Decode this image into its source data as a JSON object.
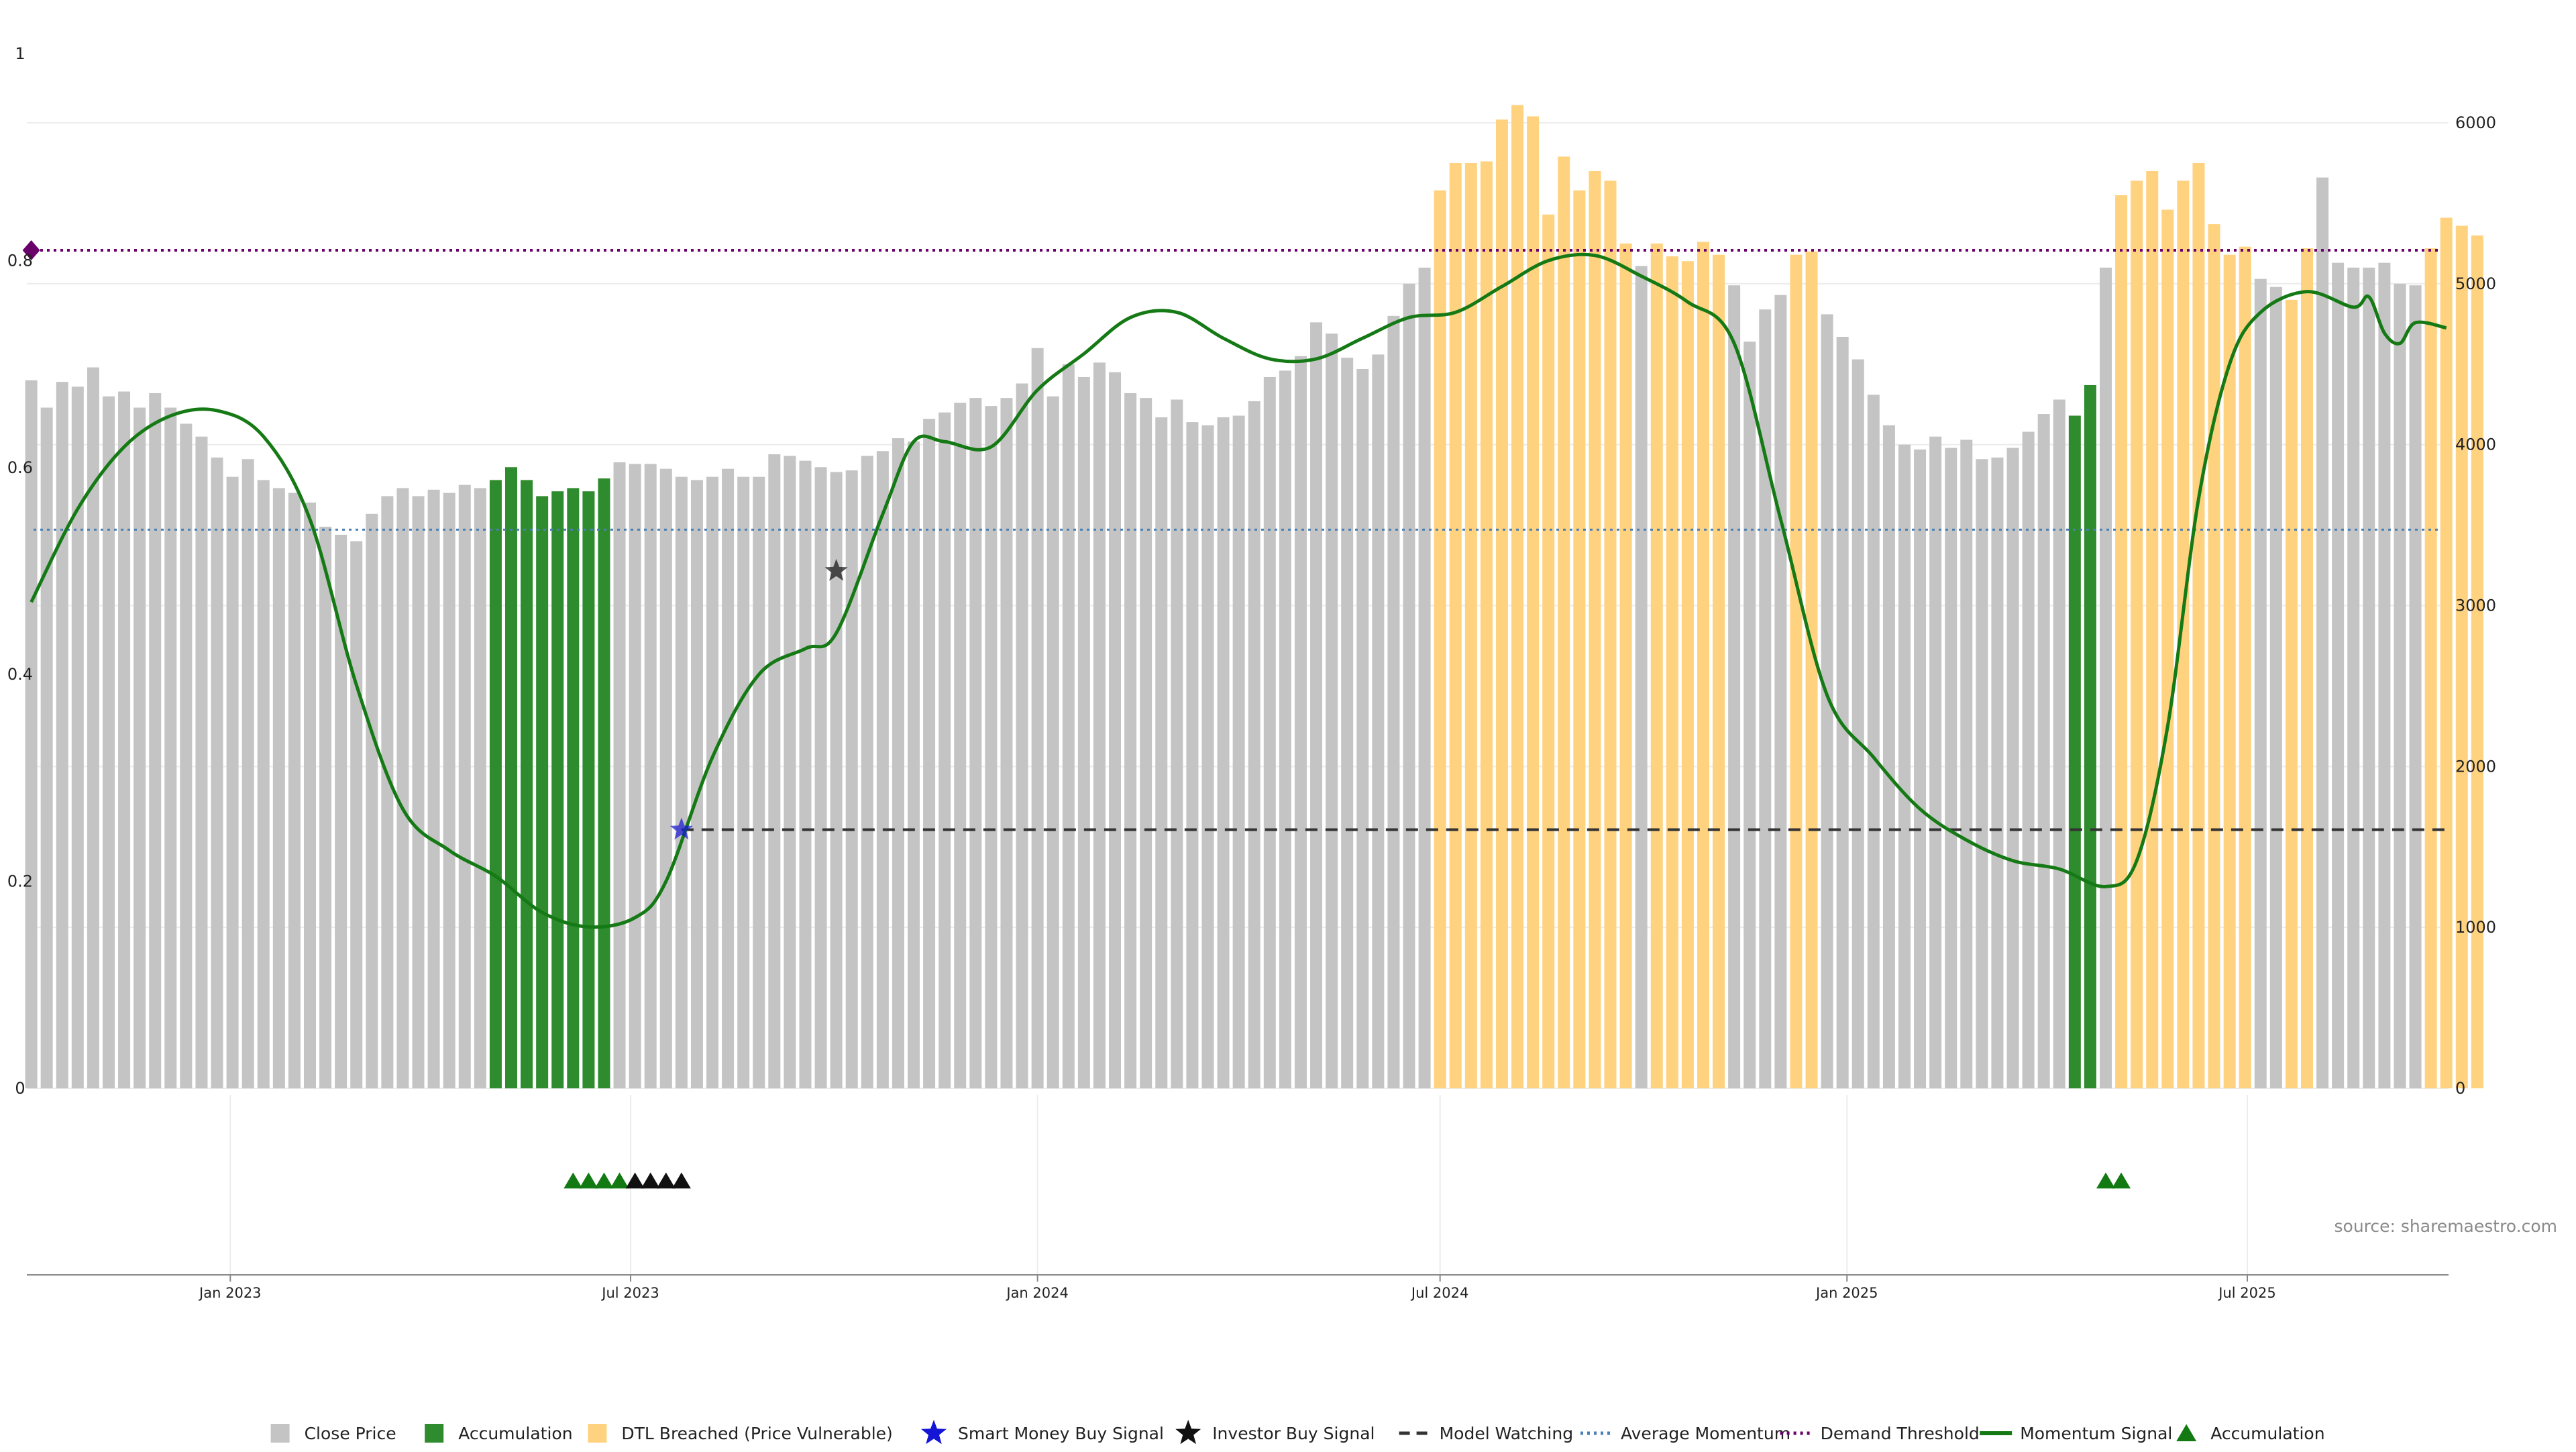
{
  "chart_data": {
    "type": "bar",
    "title": "",
    "xlabel": "",
    "ylabel": "",
    "x_ticks": [
      "Jan 2023",
      "Jul 2023",
      "Jan 2024",
      "Jul 2024",
      "Jan 2025",
      "Jul 2025"
    ],
    "x_tick_dates": [
      "2023-01-01",
      "2023-07-01",
      "2024-01-01",
      "2024-07-01",
      "2025-01-01",
      "2025-07-01"
    ],
    "x_range": [
      "2022-10-01",
      "2025-09-30"
    ],
    "momentum_axis": {
      "side": "left",
      "ylim": [
        0,
        1
      ],
      "ticks": [
        "0",
        "0.2",
        "0.4",
        "0.6",
        "0.8",
        "1"
      ]
    },
    "price_axis": {
      "side": "right",
      "ylim": [
        0,
        6000
      ],
      "ticks": [
        "0",
        "1000",
        "2000",
        "3000",
        "4000",
        "5000",
        "6000"
      ]
    },
    "grid": true,
    "legend_position": "bottom-center",
    "colors": {
      "close_price": "#c4c4c4",
      "accumulation": "#2e8b2e",
      "dtl_breached": "#ffd27f",
      "smart_money": "#1515d6",
      "investor": "#111111",
      "model_watching": "#333333",
      "average_momentum": "#4a7fb5",
      "demand_threshold": "#6a006a",
      "momentum_signal": "#157a15",
      "accumulation_marker": "#137a13"
    },
    "bar_start_date": "2022-10-03",
    "bar_interval_days": 7,
    "price_bars": [
      4400,
      4230,
      4390,
      4360,
      4480,
      4300,
      4330,
      4230,
      4320,
      4230,
      4130,
      4050,
      3920,
      3800,
      3910,
      3780,
      3730,
      3700,
      3640,
      3490,
      3440,
      3400,
      3570,
      3680,
      3730,
      3680,
      3720,
      3700,
      3750,
      3730,
      3780,
      3860,
      3780,
      3680,
      3710,
      3730,
      3710,
      3790,
      3890,
      3880,
      3880,
      3850,
      3800,
      3780,
      3800,
      3850,
      3800,
      3800,
      3940,
      3930,
      3900,
      3860,
      3830,
      3840,
      3930,
      3960,
      4040,
      4020,
      4160,
      4200,
      4260,
      4290,
      4240,
      4290,
      4380,
      4600,
      4300,
      4500,
      4420,
      4510,
      4450,
      4320,
      4290,
      4170,
      4280,
      4140,
      4120,
      4170,
      4180,
      4270,
      4420,
      4460,
      4550,
      4760,
      4690,
      4540,
      4470,
      4560,
      4800,
      5000,
      5100,
      5580,
      5750,
      5750,
      5760,
      6020,
      6110,
      6040,
      5430,
      5790,
      5580,
      5700,
      5640,
      5250,
      5110,
      5250,
      5170,
      5140,
      5260,
      5180,
      4990,
      4640,
      4840,
      4930,
      5180,
      5200,
      4810,
      4670,
      4530,
      4310,
      4120,
      4000,
      3970,
      4050,
      3980,
      4030,
      3910,
      3920,
      3980,
      4080,
      4190,
      4280,
      4180,
      4370,
      5100,
      5550,
      5640,
      5700,
      5460,
      5640,
      5750,
      5370,
      5180,
      5230,
      5030,
      4980,
      4900,
      5220,
      5660,
      5130,
      5100,
      5100,
      5130,
      5000,
      4990,
      5220,
      5410,
      5360,
      5300
    ],
    "bar_category": [
      "close",
      "close",
      "close",
      "close",
      "close",
      "close",
      "close",
      "close",
      "close",
      "close",
      "close",
      "close",
      "close",
      "close",
      "close",
      "close",
      "close",
      "close",
      "close",
      "close",
      "close",
      "close",
      "close",
      "close",
      "close",
      "close",
      "close",
      "close",
      "close",
      "close",
      "accumulation",
      "accumulation",
      "accumulation",
      "accumulation",
      "accumulation",
      "accumulation",
      "accumulation",
      "accumulation",
      "close",
      "close",
      "close",
      "close",
      "close",
      "close",
      "close",
      "close",
      "close",
      "close",
      "close",
      "close",
      "close",
      "close",
      "close",
      "close",
      "close",
      "close",
      "close",
      "close",
      "close",
      "close",
      "close",
      "close",
      "close",
      "close",
      "close",
      "close",
      "close",
      "close",
      "close",
      "close",
      "close",
      "close",
      "close",
      "close",
      "close",
      "close",
      "close",
      "close",
      "close",
      "close",
      "close",
      "close",
      "close",
      "close",
      "close",
      "close",
      "close",
      "close",
      "close",
      "close",
      "close",
      "dtl",
      "dtl",
      "dtl",
      "dtl",
      "dtl",
      "dtl",
      "dtl",
      "dtl",
      "dtl",
      "dtl",
      "dtl",
      "dtl",
      "dtl",
      "close",
      "dtl",
      "dtl",
      "dtl",
      "dtl",
      "dtl",
      "close",
      "close",
      "close",
      "close",
      "dtl",
      "dtl",
      "close",
      "close",
      "close",
      "close",
      "close",
      "close",
      "close",
      "close",
      "close",
      "close",
      "close",
      "close",
      "close",
      "close",
      "close",
      "close",
      "accumulation",
      "accumulation",
      "close",
      "dtl",
      "dtl",
      "dtl",
      "dtl",
      "dtl",
      "dtl",
      "dtl",
      "dtl",
      "dtl",
      "close",
      "close",
      "dtl",
      "dtl",
      "close",
      "close",
      "close",
      "close",
      "close",
      "close",
      "close",
      "dtl",
      "dtl",
      "dtl",
      "dtl"
    ],
    "momentum_signal": [
      {
        "date": "2022-10-03",
        "value": 0.47
      },
      {
        "date": "2022-10-24",
        "value": 0.56
      },
      {
        "date": "2022-11-14",
        "value": 0.62
      },
      {
        "date": "2022-12-05",
        "value": 0.65
      },
      {
        "date": "2022-12-26",
        "value": 0.655
      },
      {
        "date": "2023-01-16",
        "value": 0.63
      },
      {
        "date": "2023-02-06",
        "value": 0.55
      },
      {
        "date": "2023-02-27",
        "value": 0.39
      },
      {
        "date": "2023-03-20",
        "value": 0.27
      },
      {
        "date": "2023-04-10",
        "value": 0.23
      },
      {
        "date": "2023-05-01",
        "value": 0.205
      },
      {
        "date": "2023-05-22",
        "value": 0.17
      },
      {
        "date": "2023-06-12",
        "value": 0.156
      },
      {
        "date": "2023-07-03",
        "value": 0.165
      },
      {
        "date": "2023-07-17",
        "value": 0.2
      },
      {
        "date": "2023-08-07",
        "value": 0.32
      },
      {
        "date": "2023-08-28",
        "value": 0.4
      },
      {
        "date": "2023-09-18",
        "value": 0.425
      },
      {
        "date": "2023-10-02",
        "value": 0.44
      },
      {
        "date": "2023-10-23",
        "value": 0.555
      },
      {
        "date": "2023-11-06",
        "value": 0.625
      },
      {
        "date": "2023-11-20",
        "value": 0.625
      },
      {
        "date": "2023-12-11",
        "value": 0.62
      },
      {
        "date": "2024-01-01",
        "value": 0.675
      },
      {
        "date": "2024-01-22",
        "value": 0.71
      },
      {
        "date": "2024-02-12",
        "value": 0.745
      },
      {
        "date": "2024-03-04",
        "value": 0.75
      },
      {
        "date": "2024-03-25",
        "value": 0.725
      },
      {
        "date": "2024-04-15",
        "value": 0.705
      },
      {
        "date": "2024-05-06",
        "value": 0.705
      },
      {
        "date": "2024-05-27",
        "value": 0.725
      },
      {
        "date": "2024-06-17",
        "value": 0.745
      },
      {
        "date": "2024-07-08",
        "value": 0.75
      },
      {
        "date": "2024-07-29",
        "value": 0.775
      },
      {
        "date": "2024-08-19",
        "value": 0.8
      },
      {
        "date": "2024-09-09",
        "value": 0.805
      },
      {
        "date": "2024-09-30",
        "value": 0.785
      },
      {
        "date": "2024-10-21",
        "value": 0.76
      },
      {
        "date": "2024-11-11",
        "value": 0.72
      },
      {
        "date": "2024-12-02",
        "value": 0.55
      },
      {
        "date": "2024-12-23",
        "value": 0.38
      },
      {
        "date": "2025-01-13",
        "value": 0.32
      },
      {
        "date": "2025-02-03",
        "value": 0.27
      },
      {
        "date": "2025-02-24",
        "value": 0.24
      },
      {
        "date": "2025-03-17",
        "value": 0.22
      },
      {
        "date": "2025-04-07",
        "value": 0.212
      },
      {
        "date": "2025-04-28",
        "value": 0.195
      },
      {
        "date": "2025-05-12",
        "value": 0.22
      },
      {
        "date": "2025-05-26",
        "value": 0.35
      },
      {
        "date": "2025-06-09",
        "value": 0.57
      },
      {
        "date": "2025-06-23",
        "value": 0.7
      },
      {
        "date": "2025-07-07",
        "value": 0.75
      },
      {
        "date": "2025-07-28",
        "value": 0.77
      },
      {
        "date": "2025-08-18",
        "value": 0.755
      },
      {
        "date": "2025-08-25",
        "value": 0.765
      },
      {
        "date": "2025-09-01",
        "value": 0.73
      },
      {
        "date": "2025-09-08",
        "value": 0.72
      },
      {
        "date": "2025-09-15",
        "value": 0.74
      },
      {
        "date": "2025-09-29",
        "value": 0.735
      }
    ],
    "average_momentum": 0.54,
    "demand_threshold": 0.81,
    "demand_threshold_marker_date": "2022-10-03",
    "model_watching": {
      "start_date": "2023-07-24",
      "end_date": "2025-09-29",
      "value": 0.25
    },
    "smart_money_buy_signals": [
      {
        "date": "2023-07-24",
        "value": 0.25
      }
    ],
    "investor_buy_signals": [
      {
        "date": "2023-10-02",
        "value": 0.5
      }
    ],
    "accumulation_markers": [
      {
        "date": "2023-06-05",
        "color": "accumulation_marker"
      },
      {
        "date": "2023-06-12",
        "color": "accumulation_marker"
      },
      {
        "date": "2023-06-19",
        "color": "accumulation_marker"
      },
      {
        "date": "2023-06-26",
        "color": "accumulation_marker"
      },
      {
        "date": "2023-07-03",
        "color": "investor"
      },
      {
        "date": "2023-07-10",
        "color": "investor"
      },
      {
        "date": "2023-07-17",
        "color": "investor"
      },
      {
        "date": "2023-07-24",
        "color": "investor"
      },
      {
        "date": "2025-04-28",
        "color": "accumulation_marker"
      },
      {
        "date": "2025-05-05",
        "color": "accumulation_marker"
      }
    ],
    "legend": [
      {
        "label": "Close Price",
        "symbol": "square",
        "color": "close_price"
      },
      {
        "label": "Accumulation",
        "symbol": "square",
        "color": "accumulation"
      },
      {
        "label": "DTL Breached (Price Vulnerable)",
        "symbol": "square",
        "color": "dtl_breached"
      },
      {
        "label": "Smart Money Buy Signal",
        "symbol": "star",
        "color": "smart_money"
      },
      {
        "label": "Investor Buy Signal",
        "symbol": "star",
        "color": "investor"
      },
      {
        "label": "Model Watching",
        "symbol": "dash",
        "color": "model_watching"
      },
      {
        "label": "Average Momentum",
        "symbol": "dot",
        "color": "average_momentum"
      },
      {
        "label": "Demand Threshold",
        "symbol": "dot",
        "color": "demand_threshold"
      },
      {
        "label": "Momentum Signal",
        "symbol": "line",
        "color": "momentum_signal"
      },
      {
        "label": "Accumulation",
        "symbol": "triangle",
        "color": "accumulation_marker"
      }
    ],
    "source_note": "source: sharemaestro.com"
  }
}
